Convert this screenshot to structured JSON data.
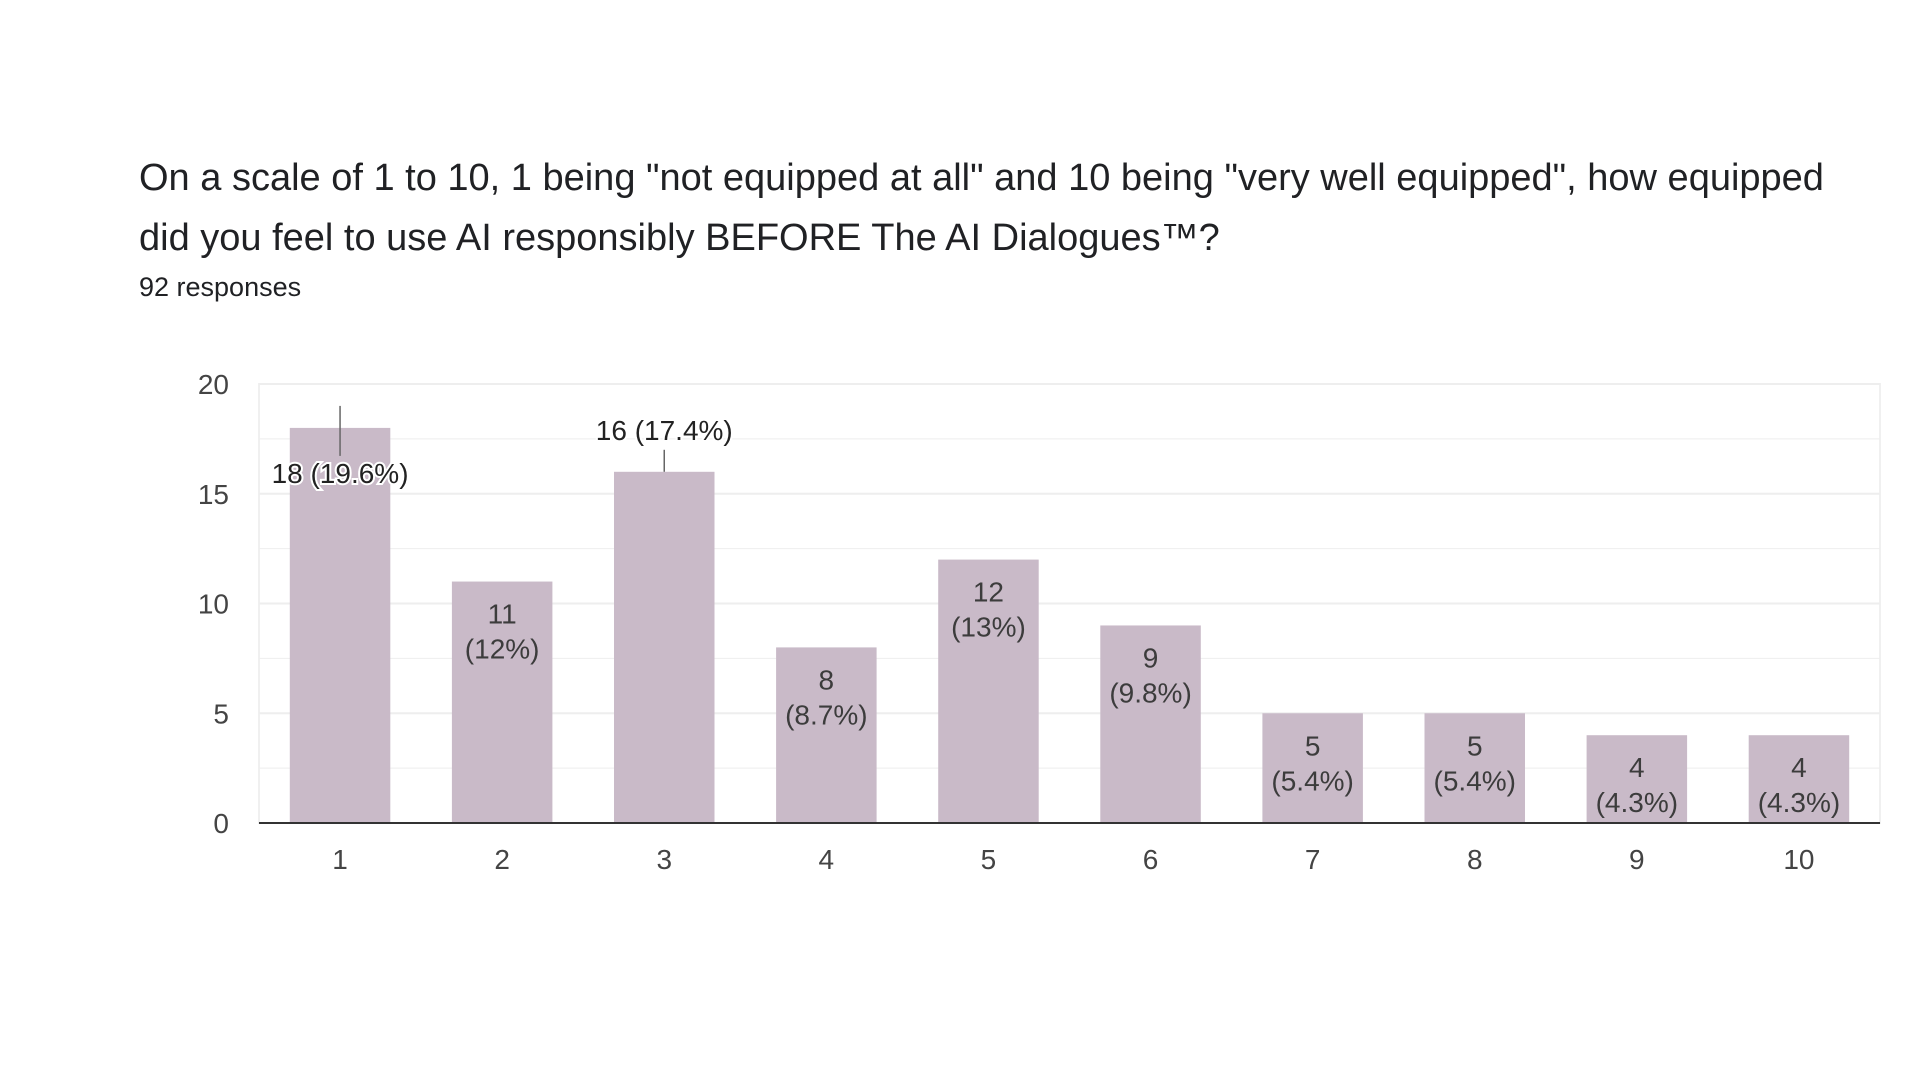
{
  "question": {
    "line1": "On a scale of 1 to 10, 1 being \"not equipped at all\" and 10 being \"very well equipped\", how equipped",
    "line2": "did you feel to use AI responsibly BEFORE The AI Dialogues™?"
  },
  "responses_label": "92 responses",
  "colors": {
    "bar": "#c9bac8",
    "axis": "#333333",
    "grid": "#eeeeee",
    "label_inside": "#3c3c3c",
    "label_outside": "#222222"
  },
  "chart_data": {
    "type": "bar",
    "categories": [
      "1",
      "2",
      "3",
      "4",
      "5",
      "6",
      "7",
      "8",
      "9",
      "10"
    ],
    "values": [
      18,
      11,
      16,
      8,
      12,
      9,
      5,
      5,
      4,
      4
    ],
    "data_labels": [
      [
        "18 (19.6%)"
      ],
      [
        "11",
        "(12%)"
      ],
      [
        "16 (17.4%)"
      ],
      [
        "8",
        "(8.7%)"
      ],
      [
        "12",
        "(13%)"
      ],
      [
        "9",
        "(9.8%)"
      ],
      [
        "5",
        "(5.4%)"
      ],
      [
        "5",
        "(5.4%)"
      ],
      [
        "4",
        "(4.3%)"
      ],
      [
        "4",
        "(4.3%)"
      ]
    ],
    "label_outside": [
      true,
      false,
      true,
      false,
      false,
      false,
      false,
      false,
      false,
      false
    ],
    "yticks": [
      0,
      5,
      10,
      15,
      20
    ],
    "ylim": [
      0,
      20
    ],
    "grid": true,
    "legend": "none",
    "xlabel": "",
    "ylabel": ""
  }
}
